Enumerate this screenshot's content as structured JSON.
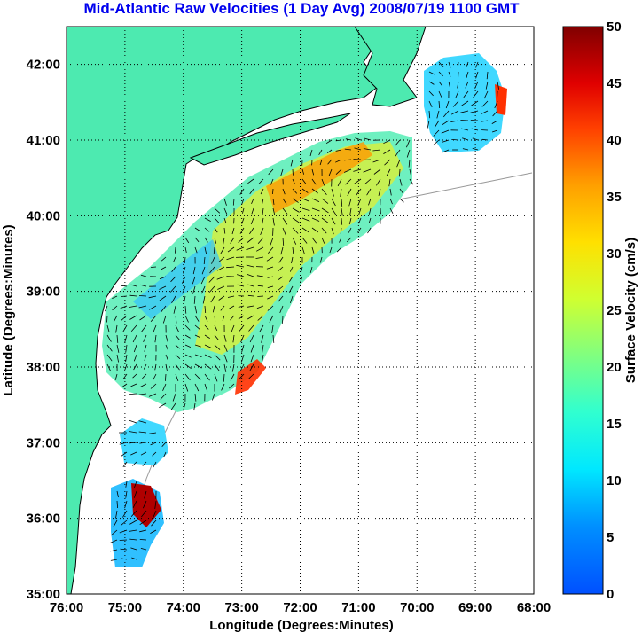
{
  "title": "Mid-Atlantic Raw Velocities (1 Day Avg) 2008/07/19 1100 GMT",
  "map": {
    "xlabel": "Longitude (Degrees:Minutes)",
    "ylabel": "Latitude (Degrees:Minutes)",
    "lon_ticks": [
      "76:00",
      "75:00",
      "74:00",
      "73:00",
      "72:00",
      "71:00",
      "70:00",
      "69:00",
      "68:00"
    ],
    "lat_ticks": [
      "35:00",
      "36:00",
      "37:00",
      "38:00",
      "39:00",
      "40:00",
      "41:00",
      "42:00"
    ],
    "lon_range": [
      -76,
      -68
    ],
    "lat_range": [
      35,
      42.5
    ],
    "grid": "dotted"
  },
  "colorbar": {
    "label": "Surface Velocity (cm/s)",
    "ticks": [
      "0",
      "5",
      "10",
      "15",
      "20",
      "25",
      "30",
      "35",
      "40",
      "45",
      "50"
    ],
    "range": [
      0,
      50
    ],
    "colormap": "jet"
  },
  "colors": {
    "land": "#4deab0",
    "water": "#ffffff",
    "title": "#0000ee",
    "coast": "#000000",
    "bathymetry": "#999999"
  }
}
